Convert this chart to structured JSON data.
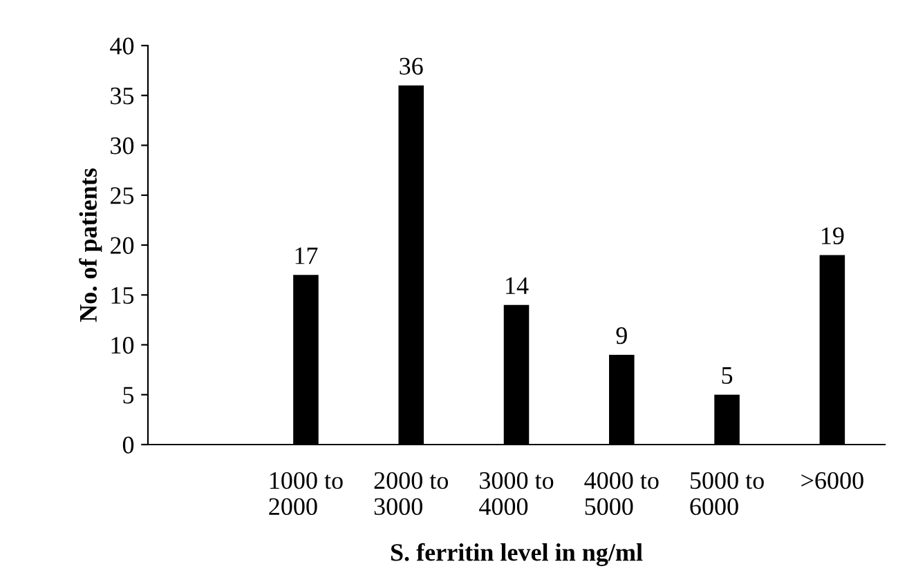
{
  "chart_data": {
    "type": "bar",
    "xlabel": "S. ferritin level in ng/ml",
    "ylabel": "No. of patients",
    "categories": [
      null,
      "1000 to\n2000",
      "2000 to\n3000",
      "3000 to\n4000",
      "4000 to\n5000",
      "5000 to\n6000",
      ">6000"
    ],
    "values": [
      null,
      17,
      36,
      14,
      9,
      5,
      19
    ],
    "color": "#000000",
    "ylim": [
      0,
      40
    ],
    "yticks": [
      0,
      5,
      10,
      15,
      20,
      25,
      30,
      35,
      40
    ],
    "data_labels": true,
    "grid": false,
    "legend": false
  }
}
